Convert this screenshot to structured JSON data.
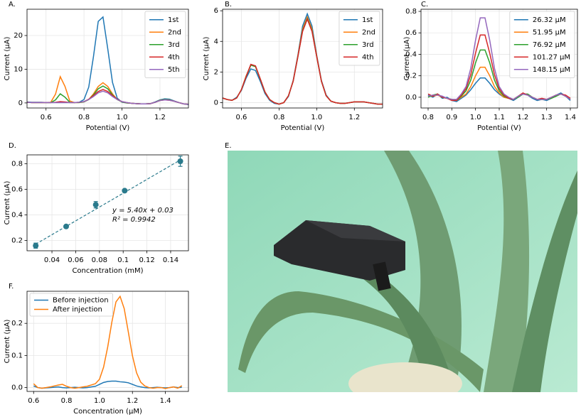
{
  "chart_data": [
    {
      "type": "line",
      "label": "A.",
      "xlabel": "Potential (V)",
      "ylabel": "Current (μA)",
      "grid": true,
      "legend": "upper right",
      "xlim": [
        0.5,
        1.35
      ],
      "ylim": [
        -1.5,
        27.8
      ],
      "xticks": [
        0.6,
        0.8,
        {
          "value": 1.0,
          "label": "1.0"
        },
        1.2
      ],
      "yticks": [
        0,
        10,
        20
      ],
      "x": [
        0.5,
        0.525,
        0.55,
        0.575,
        0.6,
        0.625,
        0.65,
        0.675,
        0.7,
        0.725,
        0.75,
        0.775,
        0.8,
        0.825,
        0.85,
        0.875,
        0.9,
        0.925,
        0.95,
        0.975,
        1.0,
        1.025,
        1.05,
        1.075,
        1.1,
        1.125,
        1.15,
        1.175,
        1.2,
        1.225,
        1.25,
        1.275,
        1.3,
        1.325,
        1.35
      ],
      "series": [
        {
          "name": "1st",
          "color": "#1f77b4",
          "values": [
            0.3,
            0.2,
            0.2,
            0.2,
            0.1,
            0.1,
            0.1,
            0.1,
            0.1,
            0.1,
            0.1,
            0.2,
            1.0,
            4.7,
            13.8,
            24.2,
            25.5,
            16.1,
            6.1,
            1.4,
            0.2,
            0,
            -0.1,
            -0.2,
            -0.3,
            -0.3,
            -0.2,
            0.3,
            0.9,
            1.2,
            1.1,
            0.6,
            0.1,
            -0.3,
            -0.5
          ]
        },
        {
          "name": "2nd",
          "color": "#ff7f0e",
          "values": [
            0.2,
            0.1,
            0.1,
            0.1,
            0.1,
            0.2,
            2.6,
            7.8,
            4.9,
            0.6,
            0.1,
            0.1,
            0.3,
            1.0,
            2.7,
            4.9,
            6.0,
            4.9,
            2.7,
            1.0,
            0.3,
            0,
            -0.1,
            -0.2,
            -0.3,
            -0.3,
            -0.2,
            0.2,
            0.8,
            1.0,
            0.9,
            0.5,
            0.1,
            -0.3,
            -0.4
          ]
        },
        {
          "name": "3rd",
          "color": "#2ca02c",
          "values": [
            0.2,
            0.1,
            0.1,
            0.1,
            0.1,
            0.1,
            0.9,
            2.7,
            1.7,
            0.2,
            0.1,
            0.1,
            0.3,
            1.0,
            2.4,
            4.2,
            5.0,
            4.2,
            2.4,
            1.0,
            0.3,
            0,
            -0.1,
            -0.2,
            -0.3,
            -0.3,
            -0.2,
            0.2,
            0.8,
            1.0,
            0.9,
            0.5,
            0.1,
            -0.3,
            -0.4
          ]
        },
        {
          "name": "4th",
          "color": "#d62728",
          "values": [
            0.2,
            0.1,
            0.1,
            0.1,
            0.1,
            0.1,
            0.2,
            0.4,
            0.3,
            0.1,
            0.1,
            0.2,
            0.4,
            1.1,
            2.2,
            3.4,
            4.0,
            3.4,
            2.2,
            1.1,
            0.4,
            0.1,
            -0.1,
            -0.2,
            -0.3,
            -0.3,
            -0.2,
            0.2,
            0.7,
            0.9,
            0.8,
            0.5,
            0.1,
            -0.3,
            -0.4
          ]
        },
        {
          "name": "5th",
          "color": "#9467bd",
          "values": [
            0.2,
            0.1,
            0.1,
            0.1,
            0.1,
            0.1,
            0.1,
            0.1,
            0.1,
            0.1,
            0.1,
            0.2,
            0.4,
            1.0,
            1.9,
            3.0,
            3.5,
            3.0,
            1.9,
            1.0,
            0.4,
            0.1,
            -0.1,
            -0.2,
            -0.3,
            -0.3,
            -0.2,
            0.2,
            0.7,
            0.9,
            0.8,
            0.5,
            0.1,
            -0.3,
            -0.4
          ]
        }
      ]
    },
    {
      "type": "line",
      "label": "B.",
      "xlabel": "Potential (V)",
      "ylabel": "Current (μA)",
      "grid": true,
      "legend": "upper right",
      "xlim": [
        0.5,
        1.35
      ],
      "ylim": [
        -0.35,
        6.1
      ],
      "xticks": [
        0.6,
        0.8,
        {
          "value": 1.0,
          "label": "1.0"
        },
        1.2
      ],
      "yticks": [
        0,
        2,
        4,
        6
      ],
      "x": [
        0.5,
        0.525,
        0.55,
        0.575,
        0.6,
        0.625,
        0.65,
        0.675,
        0.7,
        0.725,
        0.75,
        0.775,
        0.8,
        0.825,
        0.85,
        0.875,
        0.9,
        0.925,
        0.95,
        0.975,
        1.0,
        1.025,
        1.05,
        1.075,
        1.1,
        1.125,
        1.15,
        1.175,
        1.2,
        1.225,
        1.25,
        1.275,
        1.3,
        1.325,
        1.35
      ],
      "series": [
        {
          "name": "1st",
          "color": "#1f77b4",
          "values": [
            0.3,
            0.2,
            0.15,
            0.35,
            0.8,
            1.6,
            2.2,
            2.1,
            1.4,
            0.6,
            0.15,
            -0.05,
            -0.1,
            0.0,
            0.4,
            1.45,
            3.1,
            5.0,
            5.8,
            5.0,
            3.1,
            1.45,
            0.5,
            0.1,
            0,
            -0.05,
            -0.05,
            0,
            0.05,
            0.05,
            0.05,
            0,
            -0.05,
            -0.1,
            -0.1
          ]
        },
        {
          "name": "2nd",
          "color": "#ff7f0e",
          "values": [
            0.3,
            0.2,
            0.15,
            0.3,
            0.85,
            1.75,
            2.45,
            2.35,
            1.55,
            0.7,
            0.2,
            0.0,
            -0.1,
            0.0,
            0.45,
            1.4,
            3.05,
            4.8,
            5.6,
            4.8,
            3.05,
            1.4,
            0.45,
            0.1,
            0,
            -0.05,
            -0.05,
            0,
            0.05,
            0.05,
            0.05,
            0,
            -0.05,
            -0.1,
            -0.1
          ]
        },
        {
          "name": "3rd",
          "color": "#2ca02c",
          "values": [
            0.3,
            0.2,
            0.15,
            0.3,
            0.85,
            1.7,
            2.45,
            2.35,
            1.55,
            0.7,
            0.2,
            0.0,
            -0.1,
            0.0,
            0.45,
            1.4,
            3.0,
            4.7,
            5.5,
            4.7,
            3.0,
            1.4,
            0.45,
            0.1,
            0,
            -0.05,
            -0.05,
            0,
            0.05,
            0.05,
            0.05,
            0,
            -0.05,
            -0.1,
            -0.1
          ]
        },
        {
          "name": "4th",
          "color": "#d62728",
          "values": [
            0.3,
            0.2,
            0.15,
            0.3,
            0.85,
            1.7,
            2.5,
            2.4,
            1.55,
            0.7,
            0.2,
            0.0,
            -0.1,
            0.0,
            0.45,
            1.4,
            3.0,
            4.65,
            5.45,
            4.65,
            3.0,
            1.4,
            0.45,
            0.1,
            0,
            -0.05,
            -0.05,
            0,
            0.05,
            0.05,
            0.05,
            0,
            -0.05,
            -0.1,
            -0.1
          ]
        }
      ]
    },
    {
      "type": "line",
      "label": "C.",
      "xlabel": "Potential (V)",
      "ylabel": "Current (μA)",
      "grid": true,
      "legend": "upper right",
      "xlim": [
        0.77,
        1.43
      ],
      "ylim": [
        -0.1,
        0.82
      ],
      "xticks": [
        0.8,
        0.9,
        {
          "value": 1.0,
          "label": "1.0"
        },
        1.1,
        1.2,
        1.3,
        1.4
      ],
      "yticks": [
        {
          "value": 0,
          "label": "0.0"
        },
        0.2,
        0.4,
        0.6,
        0.8
      ],
      "x": [
        0.8,
        0.82,
        0.84,
        0.86,
        0.88,
        0.9,
        0.92,
        0.94,
        0.96,
        0.98,
        1.0,
        1.02,
        1.04,
        1.06,
        1.08,
        1.1,
        1.12,
        1.14,
        1.16,
        1.18,
        1.2,
        1.22,
        1.24,
        1.26,
        1.28,
        1.3,
        1.32,
        1.34,
        1.36,
        1.38,
        1.4
      ],
      "series": [
        {
          "name": "26.32 μM",
          "color": "#1f77b4",
          "values": [
            0.02,
            0.0,
            0.03,
            -0.01,
            0.0,
            -0.03,
            -0.04,
            -0.01,
            0.02,
            0.07,
            0.13,
            0.18,
            0.18,
            0.13,
            0.07,
            0.03,
            0.0,
            -0.01,
            -0.03,
            0.0,
            0.03,
            0.02,
            -0.01,
            -0.03,
            -0.02,
            -0.03,
            -0.01,
            0.02,
            0.04,
            0.01,
            -0.03
          ]
        },
        {
          "name": "51.95 μM",
          "color": "#ff7f0e",
          "values": [
            0.01,
            0.01,
            0.02,
            0.0,
            -0.01,
            -0.02,
            -0.03,
            0.0,
            0.03,
            0.1,
            0.2,
            0.28,
            0.28,
            0.2,
            0.1,
            0.04,
            0.0,
            -0.01,
            -0.02,
            0.01,
            0.03,
            0.02,
            0.0,
            -0.02,
            -0.02,
            -0.02,
            0.0,
            0.02,
            0.03,
            0.01,
            -0.02
          ]
        },
        {
          "name": "76.92 μM",
          "color": "#2ca02c",
          "values": [
            0.0,
            0.02,
            0.03,
            0.0,
            -0.01,
            -0.02,
            -0.03,
            0.01,
            0.06,
            0.16,
            0.32,
            0.44,
            0.44,
            0.32,
            0.16,
            0.06,
            0.01,
            -0.01,
            -0.02,
            0.0,
            0.03,
            0.03,
            0.0,
            -0.02,
            -0.02,
            -0.02,
            -0.01,
            0.01,
            0.03,
            0.01,
            -0.02
          ]
        },
        {
          "name": "101.27 μM",
          "color": "#d62728",
          "values": [
            0.03,
            0.01,
            0.03,
            0.0,
            -0.01,
            -0.03,
            -0.03,
            0.02,
            0.08,
            0.21,
            0.41,
            0.58,
            0.58,
            0.41,
            0.21,
            0.08,
            0.02,
            -0.01,
            -0.02,
            0.01,
            0.04,
            0.02,
            0.0,
            -0.02,
            -0.01,
            -0.02,
            0.0,
            0.02,
            0.03,
            0.02,
            -0.01
          ]
        },
        {
          "name": "148.15 μM",
          "color": "#9467bd",
          "values": [
            0.01,
            0.02,
            0.02,
            0.01,
            -0.01,
            -0.02,
            -0.02,
            0.03,
            0.1,
            0.27,
            0.53,
            0.74,
            0.74,
            0.53,
            0.27,
            0.1,
            0.03,
            0.0,
            -0.02,
            0.01,
            0.03,
            0.02,
            0.0,
            -0.02,
            -0.02,
            -0.02,
            0.0,
            0.02,
            0.03,
            0.01,
            -0.02
          ]
        }
      ]
    },
    {
      "type": "scatter",
      "label": "D.",
      "xlabel": "Concentration (mM)",
      "ylabel": "Current (μA)",
      "grid": true,
      "xlim": [
        0.019,
        0.155
      ],
      "ylim": [
        0.12,
        0.87
      ],
      "xticks": [
        0.04,
        0.06,
        0.08,
        0.1,
        0.12,
        0.14
      ],
      "yticks": [
        0.2,
        0.4,
        0.6,
        0.8
      ],
      "color": "#2a7a8c",
      "x": [
        0.02632,
        0.05195,
        0.07692,
        0.10127,
        0.14815
      ],
      "values": [
        0.16,
        0.31,
        0.48,
        0.59,
        0.82
      ],
      "errors": [
        0.02,
        0.01,
        0.025,
        0.01,
        0.04
      ],
      "trendline": {
        "x": [
          0.02632,
          0.14815
        ],
        "values": [
          0.172,
          0.83
        ]
      },
      "annotations": [
        "y = 5.40x + 0.03",
        "R² = 0.9942"
      ]
    },
    {
      "type": "line",
      "label": "F.",
      "xlabel": "Concentration (μM)",
      "ylabel": "Current (μA)",
      "grid": true,
      "legend": "upper left",
      "xlim": [
        0.56,
        1.54
      ],
      "ylim": [
        -0.012,
        0.3
      ],
      "xticks": [
        0.6,
        0.8,
        {
          "value": 1.0,
          "label": "1.0"
        },
        1.2,
        1.4
      ],
      "yticks": [
        {
          "value": 0,
          "label": "0.0"
        },
        0.1,
        0.2
      ],
      "x": [
        0.6,
        0.625,
        0.65,
        0.675,
        0.7,
        0.725,
        0.75,
        0.775,
        0.8,
        0.825,
        0.85,
        0.875,
        0.9,
        0.925,
        0.95,
        0.975,
        1.0,
        1.025,
        1.05,
        1.075,
        1.1,
        1.125,
        1.15,
        1.175,
        1.2,
        1.225,
        1.25,
        1.275,
        1.3,
        1.325,
        1.35,
        1.375,
        1.4,
        1.425,
        1.45,
        1.475,
        1.5
      ],
      "series": [
        {
          "name": "Before injection",
          "color": "#1f77b4",
          "values": [
            0.005,
            0.0,
            -0.002,
            -0.001,
            0.0,
            0.001,
            0.002,
            0.0,
            -0.001,
            0.0,
            0.001,
            0.0,
            -0.001,
            0.0,
            0.002,
            0.004,
            0.01,
            0.016,
            0.019,
            0.02,
            0.02,
            0.018,
            0.017,
            0.015,
            0.01,
            0.005,
            0.002,
            0.0,
            -0.001,
            0.0,
            0.001,
            0.0,
            -0.001,
            0.0,
            0.002,
            0.0,
            0.001
          ]
        },
        {
          "name": "After injection",
          "color": "#ff7f0e",
          "values": [
            0.012,
            0.0,
            -0.002,
            0.0,
            0.002,
            0.005,
            0.008,
            0.01,
            0.004,
            0.0,
            -0.002,
            0.0,
            0.002,
            0.004,
            0.008,
            0.012,
            0.026,
            0.064,
            0.127,
            0.204,
            0.267,
            0.284,
            0.246,
            0.173,
            0.099,
            0.046,
            0.017,
            0.005,
            0.0,
            -0.002,
            0.0,
            0.0,
            -0.003,
            0.0,
            0.002,
            -0.002,
            0.006
          ]
        }
      ]
    }
  ],
  "photo_panel": {
    "label": "E."
  }
}
